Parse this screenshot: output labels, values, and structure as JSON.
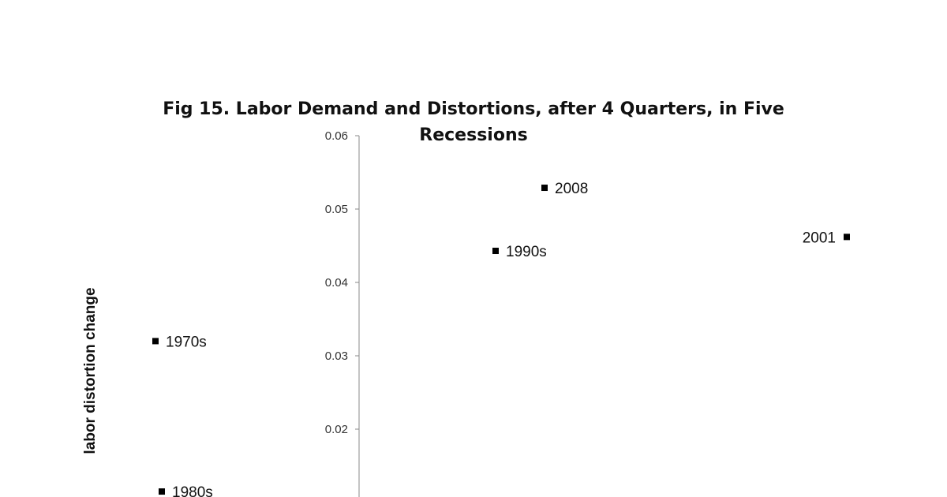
{
  "chart_data": {
    "type": "scatter",
    "title_line1": "Fig 15.  Labor Demand and Distortions, after 4 Quarters, in Five",
    "title_line2": "Recessions",
    "xlabel": "",
    "ylabel": "labor distortion change",
    "ylim": [
      0.01,
      0.06
    ],
    "yticks": [
      {
        "value": 0.06,
        "label": "0.06"
      },
      {
        "value": 0.05,
        "label": "0.05"
      },
      {
        "value": 0.04,
        "label": "0.04"
      },
      {
        "value": 0.03,
        "label": "0.03"
      },
      {
        "value": 0.02,
        "label": "0.02"
      }
    ],
    "grid": false,
    "points": [
      {
        "label": "1970s",
        "y": 0.032,
        "label_side": "right"
      },
      {
        "label": "1980s",
        "y": 0.0115,
        "label_side": "right"
      },
      {
        "label": "1990s",
        "y": 0.0443,
        "label_side": "right"
      },
      {
        "label": "2008",
        "y": 0.0529,
        "label_side": "right"
      },
      {
        "label": "2001",
        "y": 0.0462,
        "label_side": "left"
      }
    ],
    "marker_color": "#000000",
    "axis_color": "#888888"
  }
}
